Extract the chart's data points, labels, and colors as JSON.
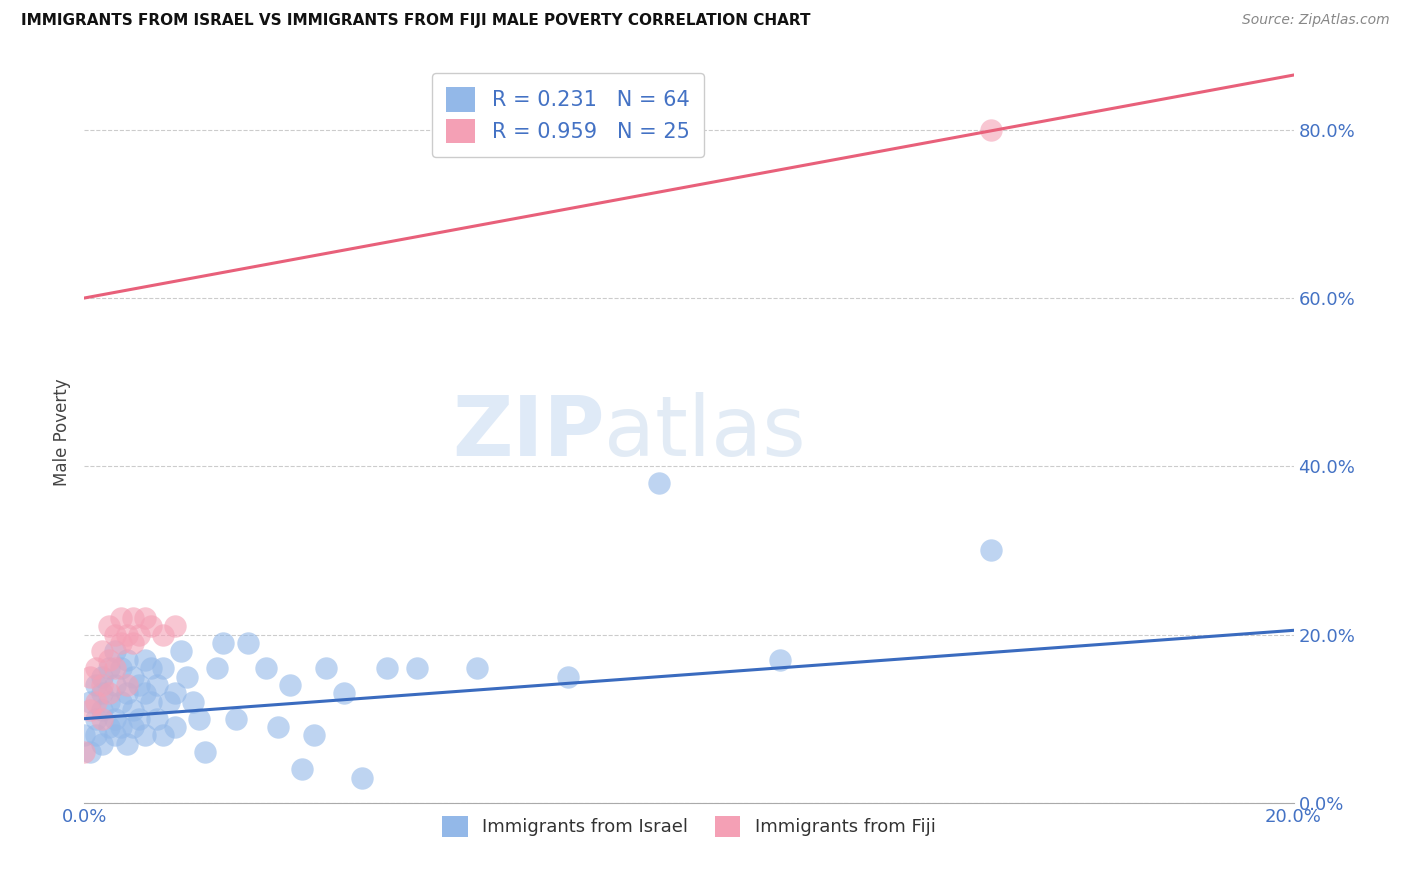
{
  "title": "IMMIGRANTS FROM ISRAEL VS IMMIGRANTS FROM FIJI MALE POVERTY CORRELATION CHART",
  "source": "Source: ZipAtlas.com",
  "ylabel": "Male Poverty",
  "xlim": [
    0.0,
    0.2
  ],
  "ylim": [
    0.0,
    0.88
  ],
  "ytick_labels": [
    "0.0%",
    "20.0%",
    "40.0%",
    "60.0%",
    "80.0%"
  ],
  "ytick_vals": [
    0.0,
    0.2,
    0.4,
    0.6,
    0.8
  ],
  "xtick_labels": [
    "0.0%",
    "",
    "",
    "",
    "20.0%"
  ],
  "xtick_vals": [
    0.0,
    0.05,
    0.1,
    0.15,
    0.2
  ],
  "israel_R": 0.231,
  "israel_N": 64,
  "fiji_R": 0.959,
  "fiji_N": 25,
  "israel_color": "#93b8e8",
  "fiji_color": "#f4a0b5",
  "israel_line_color": "#3a6bbf",
  "fiji_line_color": "#e8607a",
  "watermark_zip": "ZIP",
  "watermark_atlas": "atlas",
  "israel_line_x": [
    0.0,
    0.2
  ],
  "israel_line_y": [
    0.1,
    0.205
  ],
  "fiji_line_x": [
    0.0,
    0.2
  ],
  "fiji_line_y": [
    0.6,
    0.865
  ],
  "israel_x": [
    0.0,
    0.001,
    0.001,
    0.002,
    0.002,
    0.002,
    0.003,
    0.003,
    0.003,
    0.003,
    0.004,
    0.004,
    0.004,
    0.005,
    0.005,
    0.005,
    0.005,
    0.006,
    0.006,
    0.006,
    0.007,
    0.007,
    0.007,
    0.008,
    0.008,
    0.008,
    0.009,
    0.009,
    0.01,
    0.01,
    0.01,
    0.011,
    0.011,
    0.012,
    0.012,
    0.013,
    0.013,
    0.014,
    0.015,
    0.015,
    0.016,
    0.017,
    0.018,
    0.019,
    0.02,
    0.022,
    0.023,
    0.025,
    0.027,
    0.03,
    0.032,
    0.034,
    0.036,
    0.038,
    0.04,
    0.043,
    0.046,
    0.05,
    0.055,
    0.065,
    0.08,
    0.095,
    0.115,
    0.15
  ],
  "israel_y": [
    0.08,
    0.12,
    0.06,
    0.1,
    0.14,
    0.08,
    0.15,
    0.11,
    0.07,
    0.13,
    0.09,
    0.16,
    0.12,
    0.1,
    0.14,
    0.08,
    0.18,
    0.12,
    0.16,
    0.09,
    0.13,
    0.07,
    0.17,
    0.11,
    0.15,
    0.09,
    0.14,
    0.1,
    0.13,
    0.08,
    0.17,
    0.12,
    0.16,
    0.1,
    0.14,
    0.08,
    0.16,
    0.12,
    0.13,
    0.09,
    0.18,
    0.15,
    0.12,
    0.1,
    0.06,
    0.16,
    0.19,
    0.1,
    0.19,
    0.16,
    0.09,
    0.14,
    0.04,
    0.08,
    0.16,
    0.13,
    0.03,
    0.16,
    0.16,
    0.16,
    0.15,
    0.38,
    0.17,
    0.3
  ],
  "fiji_x": [
    0.0,
    0.001,
    0.001,
    0.002,
    0.002,
    0.003,
    0.003,
    0.003,
    0.004,
    0.004,
    0.004,
    0.005,
    0.005,
    0.006,
    0.006,
    0.007,
    0.007,
    0.008,
    0.008,
    0.009,
    0.01,
    0.011,
    0.013,
    0.015,
    0.15
  ],
  "fiji_y": [
    0.06,
    0.11,
    0.15,
    0.12,
    0.16,
    0.1,
    0.14,
    0.18,
    0.13,
    0.17,
    0.21,
    0.16,
    0.2,
    0.19,
    0.22,
    0.14,
    0.2,
    0.19,
    0.22,
    0.2,
    0.22,
    0.21,
    0.2,
    0.21,
    0.8
  ]
}
